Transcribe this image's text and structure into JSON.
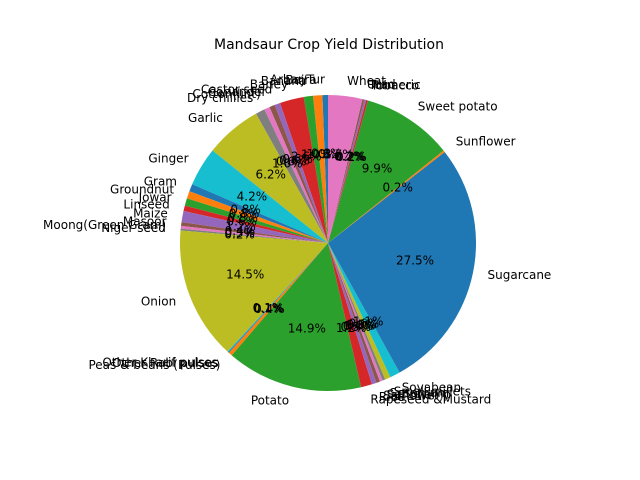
{
  "chart_data": {
    "type": "pie",
    "title": "Mandsaur Crop Yield Distribution",
    "start_angle_deg": 90,
    "direction": "counterclockwise",
    "autopct_format": "{:.1f}%",
    "palette": [
      "#1f77b4",
      "#ff7f0e",
      "#2ca02c",
      "#d62728",
      "#9467bd",
      "#8c564b",
      "#e377c2",
      "#7f7f7f",
      "#bcbd22",
      "#17becf"
    ],
    "slices": [
      {
        "label": "Arhar/Tur",
        "value": 0.6
      },
      {
        "label": "Bajra",
        "value": 1.0
      },
      {
        "label": "Banana",
        "value": 1.0
      },
      {
        "label": "Barley",
        "value": 2.6
      },
      {
        "label": "Castor seed",
        "value": 0.6
      },
      {
        "label": "Coriander",
        "value": 0.6
      },
      {
        "label": "Cotton(lint)",
        "value": 0.6
      },
      {
        "label": "Dry chillies",
        "value": 1.0
      },
      {
        "label": "Garlic",
        "value": 6.1
      },
      {
        "label": "Ginger",
        "value": 4.2
      },
      {
        "label": "Gram",
        "value": 0.8
      },
      {
        "label": "Groundnut",
        "value": 0.8
      },
      {
        "label": "Jowar",
        "value": 0.8
      },
      {
        "label": "Linseed",
        "value": 0.6
      },
      {
        "label": "Maize",
        "value": 1.2
      },
      {
        "label": "Masoor",
        "value": 0.4
      },
      {
        "label": "Moong(Green Gram)",
        "value": 0.3
      },
      {
        "label": "Niger seed",
        "value": 0.2
      },
      {
        "label": "Onion",
        "value": 14.3
      },
      {
        "label": "Other Kharif pulses",
        "value": 0.1
      },
      {
        "label": "Other Rabi pulses",
        "value": 0.1
      },
      {
        "label": "Peas & beans (Pulses)",
        "value": 0.4
      },
      {
        "label": "Potato",
        "value": 14.7
      },
      {
        "label": "Rapeseed &Mustard",
        "value": 1.2
      },
      {
        "label": "Rice",
        "value": 0.5
      },
      {
        "label": "Safflower",
        "value": 0.4
      },
      {
        "label": "Sannhamp",
        "value": 0.3
      },
      {
        "label": "Sesamum",
        "value": 0.3
      },
      {
        "label": "Small millets",
        "value": 0.6
      },
      {
        "label": "Soyabean",
        "value": 1.1
      },
      {
        "label": "Sugarcane",
        "value": 27.2
      },
      {
        "label": "Sunflower",
        "value": 0.2
      },
      {
        "label": "Sweet potato",
        "value": 9.8
      },
      {
        "label": "Tobacco",
        "value": 0.2
      },
      {
        "label": "Turmeric",
        "value": 0.2
      },
      {
        "label": "Urad",
        "value": 0.2
      },
      {
        "label": "Wheat",
        "value": 3.7
      }
    ]
  }
}
